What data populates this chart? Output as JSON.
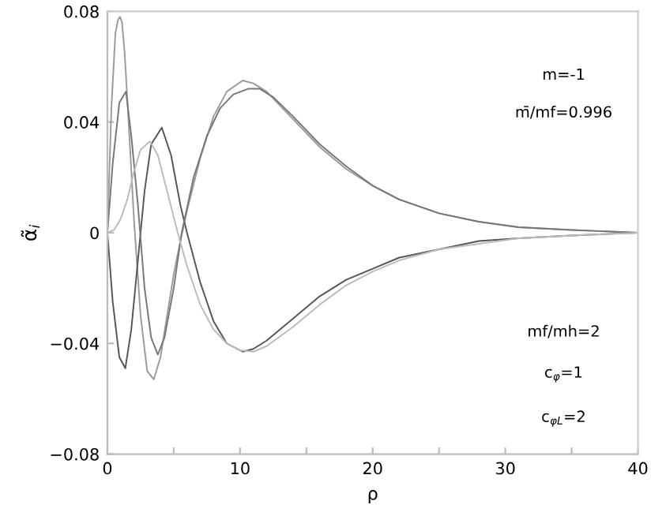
{
  "chart_data": {
    "type": "line",
    "xlabel": "ρ",
    "ylabel": "α̃$_{i}$",
    "xlim": [
      0,
      40
    ],
    "ylim": [
      -0.08,
      0.08
    ],
    "xticks": [
      0,
      {
        "value": 5,
        "label": null
      },
      10,
      {
        "value": 15,
        "label": null
      },
      20,
      {
        "value": 25,
        "label": null
      },
      30,
      {
        "value": 35,
        "label": null
      },
      40
    ],
    "yticks": [
      {
        "value": -0.08,
        "label": "−0.08"
      },
      {
        "value": -0.04,
        "label": "−0.04"
      },
      0,
      0.04,
      0.08
    ],
    "grid": false,
    "legend": false,
    "marker": "none",
    "line_style": "solid",
    "annotations": [
      "m=-1",
      "m̄/mf=0.996",
      "mf/mh=2",
      "c$_{φ}$=1",
      "c$_{φL}$=2"
    ],
    "series": [
      {
        "color": "#9a9a9a",
        "x": [
          0,
          0.3,
          0.6,
          0.8,
          0.95,
          1.1,
          1.3,
          1.6,
          2.0,
          2.5,
          3.0,
          3.5,
          4.0,
          4.5,
          5.0,
          5.5,
          6,
          7,
          8,
          9,
          10.2,
          11,
          12,
          14,
          16,
          18,
          20,
          22,
          25,
          28,
          31,
          35,
          40
        ],
        "values": [
          0,
          0.045,
          0.072,
          0.077,
          0.078,
          0.076,
          0.065,
          0.04,
          0.005,
          -0.03,
          -0.05,
          -0.053,
          -0.045,
          -0.03,
          -0.015,
          -0.003,
          0.008,
          0.027,
          0.042,
          0.051,
          0.055,
          0.054,
          0.051,
          0.041,
          0.031,
          0.023,
          0.017,
          0.012,
          0.007,
          0.004,
          0.002,
          0.001,
          0
        ]
      },
      {
        "color": "#555555",
        "x": [
          0,
          0.4,
          0.9,
          1.35,
          1.8,
          2.3,
          2.8,
          3.3,
          4.1,
          4.8,
          5.5,
          6,
          7,
          8,
          9,
          10.2,
          11,
          12,
          14,
          16,
          18,
          20,
          22,
          25,
          28,
          31,
          35,
          40
        ],
        "values": [
          0,
          -0.025,
          -0.045,
          -0.049,
          -0.035,
          -0.01,
          0.015,
          0.032,
          0.038,
          0.028,
          0.01,
          0,
          -0.018,
          -0.032,
          -0.04,
          -0.043,
          -0.042,
          -0.039,
          -0.031,
          -0.023,
          -0.017,
          -0.013,
          -0.009,
          -0.006,
          -0.003,
          -0.002,
          -0.001,
          0
        ]
      },
      {
        "color": "#777777",
        "x": [
          0,
          0.4,
          0.9,
          1.4,
          1.8,
          2.3,
          2.8,
          3.3,
          3.8,
          4.3,
          5,
          5.6,
          6.5,
          7.5,
          8.5,
          9.5,
          10.6,
          11.5,
          12.5,
          14,
          16,
          18,
          20,
          22,
          25,
          28,
          31,
          35,
          40
        ],
        "values": [
          0,
          0.025,
          0.047,
          0.051,
          0.035,
          0.01,
          -0.02,
          -0.038,
          -0.044,
          -0.038,
          -0.02,
          0,
          0.02,
          0.035,
          0.045,
          0.05,
          0.052,
          0.052,
          0.049,
          0.042,
          0.032,
          0.024,
          0.017,
          0.012,
          0.007,
          0.004,
          0.002,
          0.001,
          0
        ]
      },
      {
        "color": "#bbbbbb",
        "x": [
          0,
          0.5,
          1,
          1.5,
          2,
          2.5,
          3.2,
          3.8,
          4.5,
          5.3,
          6,
          7,
          8,
          9,
          10,
          11,
          12,
          14,
          16,
          18,
          20,
          22,
          25,
          28,
          31,
          35,
          40
        ],
        "values": [
          0,
          0.001,
          0.005,
          0.012,
          0.022,
          0.03,
          0.033,
          0.028,
          0.015,
          0,
          -0.012,
          -0.026,
          -0.035,
          -0.04,
          -0.0425,
          -0.043,
          -0.041,
          -0.034,
          -0.026,
          -0.019,
          -0.014,
          -0.01,
          -0.006,
          -0.004,
          -0.002,
          -0.001,
          0
        ]
      }
    ]
  }
}
